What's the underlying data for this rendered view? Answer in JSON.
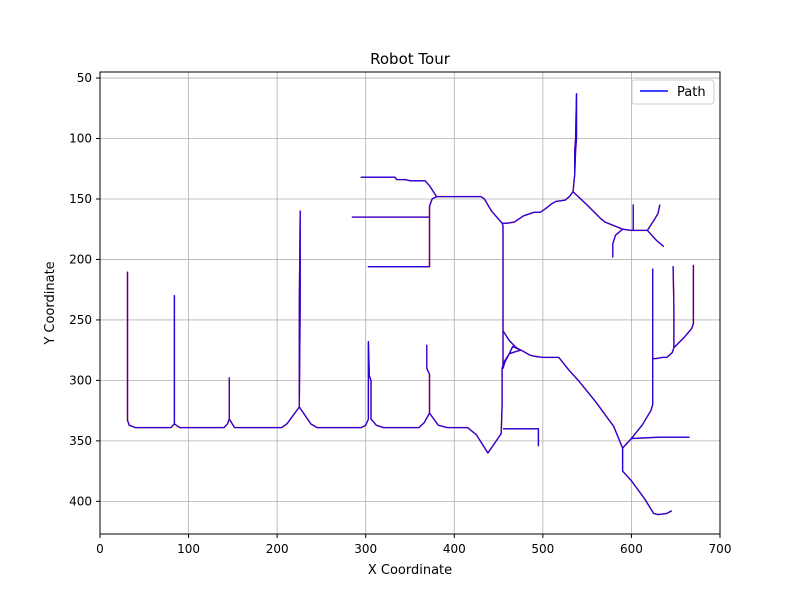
{
  "chart_data": {
    "type": "line",
    "title": "Robot Tour",
    "xlabel": "X Coordinate",
    "ylabel": "Y Coordinate",
    "xlim": [
      0,
      700
    ],
    "ylim": [
      427,
      45
    ],
    "y_axis_inverted": true,
    "xticks": [
      0,
      100,
      200,
      300,
      400,
      500,
      600,
      700
    ],
    "yticks": [
      50,
      100,
      150,
      200,
      250,
      300,
      350,
      400
    ],
    "grid": true,
    "legend": {
      "position": "top-right",
      "entries": [
        "Path"
      ]
    },
    "colors": {
      "path": "#0000ff",
      "overlay": "#ff0000",
      "grid": "#b0b0b0"
    },
    "series": [
      {
        "name": "Path",
        "segments": [
          [
            [
              31,
              210
            ],
            [
              31,
              333
            ],
            [
              33,
              337
            ],
            [
              40,
              339
            ],
            [
              80,
              339
            ],
            [
              84,
              336
            ],
            [
              84,
              230
            ],
            [
              84,
              336
            ],
            [
              90,
              339
            ],
            [
              140,
              339
            ],
            [
              144,
              336
            ],
            [
              146,
              332
            ],
            [
              146,
              298
            ],
            [
              146,
              332
            ],
            [
              152,
              339
            ],
            [
              205,
              339
            ],
            [
              211,
              336
            ],
            [
              225,
              322
            ],
            [
              225,
              237
            ],
            [
              226,
              160
            ],
            [
              226,
              235
            ],
            [
              225,
              322
            ],
            [
              238,
              336
            ],
            [
              245,
              339
            ],
            [
              295,
              339
            ],
            [
              300,
              337
            ],
            [
              303,
              332
            ],
            [
              303,
              268
            ],
            [
              304,
              296
            ],
            [
              306,
              300
            ],
            [
              306,
              310
            ],
            [
              306,
              332
            ],
            [
              312,
              337
            ],
            [
              320,
              339
            ],
            [
              360,
              339
            ],
            [
              366,
              335
            ],
            [
              372,
              327
            ],
            [
              372,
              295
            ],
            [
              369,
              290
            ],
            [
              369,
              271
            ],
            [
              369,
              290
            ],
            [
              372,
              295
            ],
            [
              372,
              327
            ],
            [
              382,
              337
            ],
            [
              392,
              339
            ],
            [
              415,
              339
            ],
            [
              425,
              345
            ],
            [
              438,
              360
            ],
            [
              453,
              344
            ],
            [
              454,
              320
            ],
            [
              454,
              290
            ],
            [
              456,
              285
            ],
            [
              462,
              278
            ],
            [
              466,
              272
            ],
            [
              475,
              275
            ],
            [
              470,
              276
            ],
            [
              462,
              278
            ],
            [
              457,
              285
            ],
            [
              455,
              290
            ],
            [
              455,
              283
            ],
            [
              455,
              259
            ],
            [
              455,
              172
            ],
            [
              454,
              170
            ],
            [
              442,
              160
            ],
            [
              434,
              150
            ],
            [
              430,
              148
            ],
            [
              380,
              148
            ],
            [
              375,
              150
            ],
            [
              372,
              156
            ],
            [
              372,
              165
            ],
            [
              372,
              206
            ],
            [
              303,
              206
            ],
            [
              372,
              206
            ],
            [
              372,
              165
            ],
            [
              285,
              165
            ],
            [
              372,
              165
            ],
            [
              372,
              156
            ],
            [
              375,
              150
            ],
            [
              380,
              148
            ],
            [
              372,
              139
            ],
            [
              367,
              135
            ],
            [
              350,
              135
            ],
            [
              345,
              134
            ],
            [
              335,
              134
            ],
            [
              333,
              132
            ],
            [
              295,
              132
            ],
            [
              333,
              132
            ],
            [
              335,
              134
            ],
            [
              345,
              134
            ],
            [
              350,
              135
            ],
            [
              367,
              135
            ],
            [
              372,
              139
            ],
            [
              380,
              148
            ],
            [
              430,
              148
            ],
            [
              434,
              150
            ],
            [
              442,
              160
            ],
            [
              454,
              170
            ],
            [
              460,
              170
            ],
            [
              468,
              169
            ],
            [
              478,
              164
            ],
            [
              490,
              161
            ],
            [
              497,
              161
            ],
            [
              503,
              158
            ],
            [
              510,
              154
            ],
            [
              515,
              152
            ],
            [
              525,
              151
            ],
            [
              530,
              148
            ],
            [
              534,
              144
            ],
            [
              536,
              130
            ],
            [
              536,
              110
            ],
            [
              537,
              100
            ],
            [
              538,
              63
            ],
            [
              538,
              100
            ],
            [
              537,
              110
            ],
            [
              536,
              130
            ],
            [
              534,
              144
            ],
            [
              550,
              155
            ],
            [
              565,
              166
            ],
            [
              570,
              169
            ],
            [
              590,
              175
            ],
            [
              600,
              176
            ],
            [
              618,
              176
            ],
            [
              628,
              184
            ],
            [
              636,
              189
            ],
            [
              628,
              184
            ],
            [
              618,
              176
            ],
            [
              600,
              176
            ],
            [
              590,
              175
            ],
            [
              582,
              180
            ],
            [
              579,
              187
            ],
            [
              579,
              198
            ],
            [
              579,
              187
            ],
            [
              582,
              180
            ],
            [
              590,
              175
            ],
            [
              600,
              176
            ],
            [
              602,
              176
            ],
            [
              602,
              155
            ],
            [
              602,
              176
            ],
            [
              618,
              176
            ],
            [
              625,
              168
            ],
            [
              630,
              162
            ],
            [
              632,
              155
            ],
            [
              630,
              162
            ],
            [
              625,
              168
            ],
            [
              618,
              176
            ],
            [
              600,
              176
            ],
            [
              590,
              175
            ],
            [
              570,
              169
            ],
            [
              565,
              166
            ],
            [
              550,
              155
            ],
            [
              534,
              144
            ]
          ],
          [
            [
              455,
              259
            ],
            [
              462,
              267
            ],
            [
              470,
              273
            ],
            [
              478,
              276
            ],
            [
              485,
              279
            ],
            [
              490,
              280
            ],
            [
              500,
              281
            ],
            [
              510,
              281
            ],
            [
              518,
              281
            ],
            [
              530,
              292
            ],
            [
              540,
              300
            ],
            [
              560,
              318
            ],
            [
              580,
              338
            ],
            [
              590,
              356
            ],
            [
              590,
              375
            ],
            [
              600,
              383
            ],
            [
              615,
              398
            ],
            [
              625,
              410
            ],
            [
              630,
              411
            ],
            [
              640,
              410
            ],
            [
              645,
              408
            ],
            [
              640,
              410
            ],
            [
              630,
              411
            ],
            [
              625,
              410
            ],
            [
              615,
              398
            ],
            [
              600,
              383
            ],
            [
              590,
              375
            ],
            [
              590,
              356
            ],
            [
              600,
              348
            ],
            [
              612,
              337
            ],
            [
              622,
              325
            ],
            [
              624,
              320
            ],
            [
              624,
              282
            ],
            [
              624,
              208
            ],
            [
              624,
              282
            ],
            [
              628,
              282
            ],
            [
              635,
              281
            ],
            [
              640,
              281
            ],
            [
              646,
              277
            ],
            [
              648,
              273
            ],
            [
              648,
              240
            ],
            [
              647,
              206
            ],
            [
              648,
              240
            ],
            [
              648,
              273
            ],
            [
              660,
              264
            ],
            [
              668,
              257
            ],
            [
              670,
              253
            ],
            [
              670,
              205
            ],
            [
              670,
              253
            ],
            [
              668,
              257
            ],
            [
              660,
              264
            ],
            [
              648,
              273
            ],
            [
              646,
              277
            ],
            [
              640,
              281
            ],
            [
              635,
              281
            ],
            [
              628,
              282
            ],
            [
              624,
              282
            ],
            [
              624,
              320
            ],
            [
              622,
              325
            ],
            [
              612,
              337
            ],
            [
              600,
              348
            ],
            [
              632,
              347
            ],
            [
              665,
              347
            ],
            [
              632,
              347
            ],
            [
              600,
              348
            ],
            [
              590,
              356
            ],
            [
              580,
              338
            ],
            [
              560,
              318
            ],
            [
              540,
              300
            ],
            [
              530,
              292
            ],
            [
              518,
              281
            ],
            [
              510,
              281
            ],
            [
              500,
              281
            ],
            [
              490,
              280
            ],
            [
              485,
              279
            ],
            [
              478,
              276
            ]
          ],
          [
            [
              455,
              340
            ],
            [
              495,
              340
            ],
            [
              495,
              354
            ],
            [
              495,
              340
            ],
            [
              455,
              340
            ]
          ]
        ]
      }
    ]
  }
}
